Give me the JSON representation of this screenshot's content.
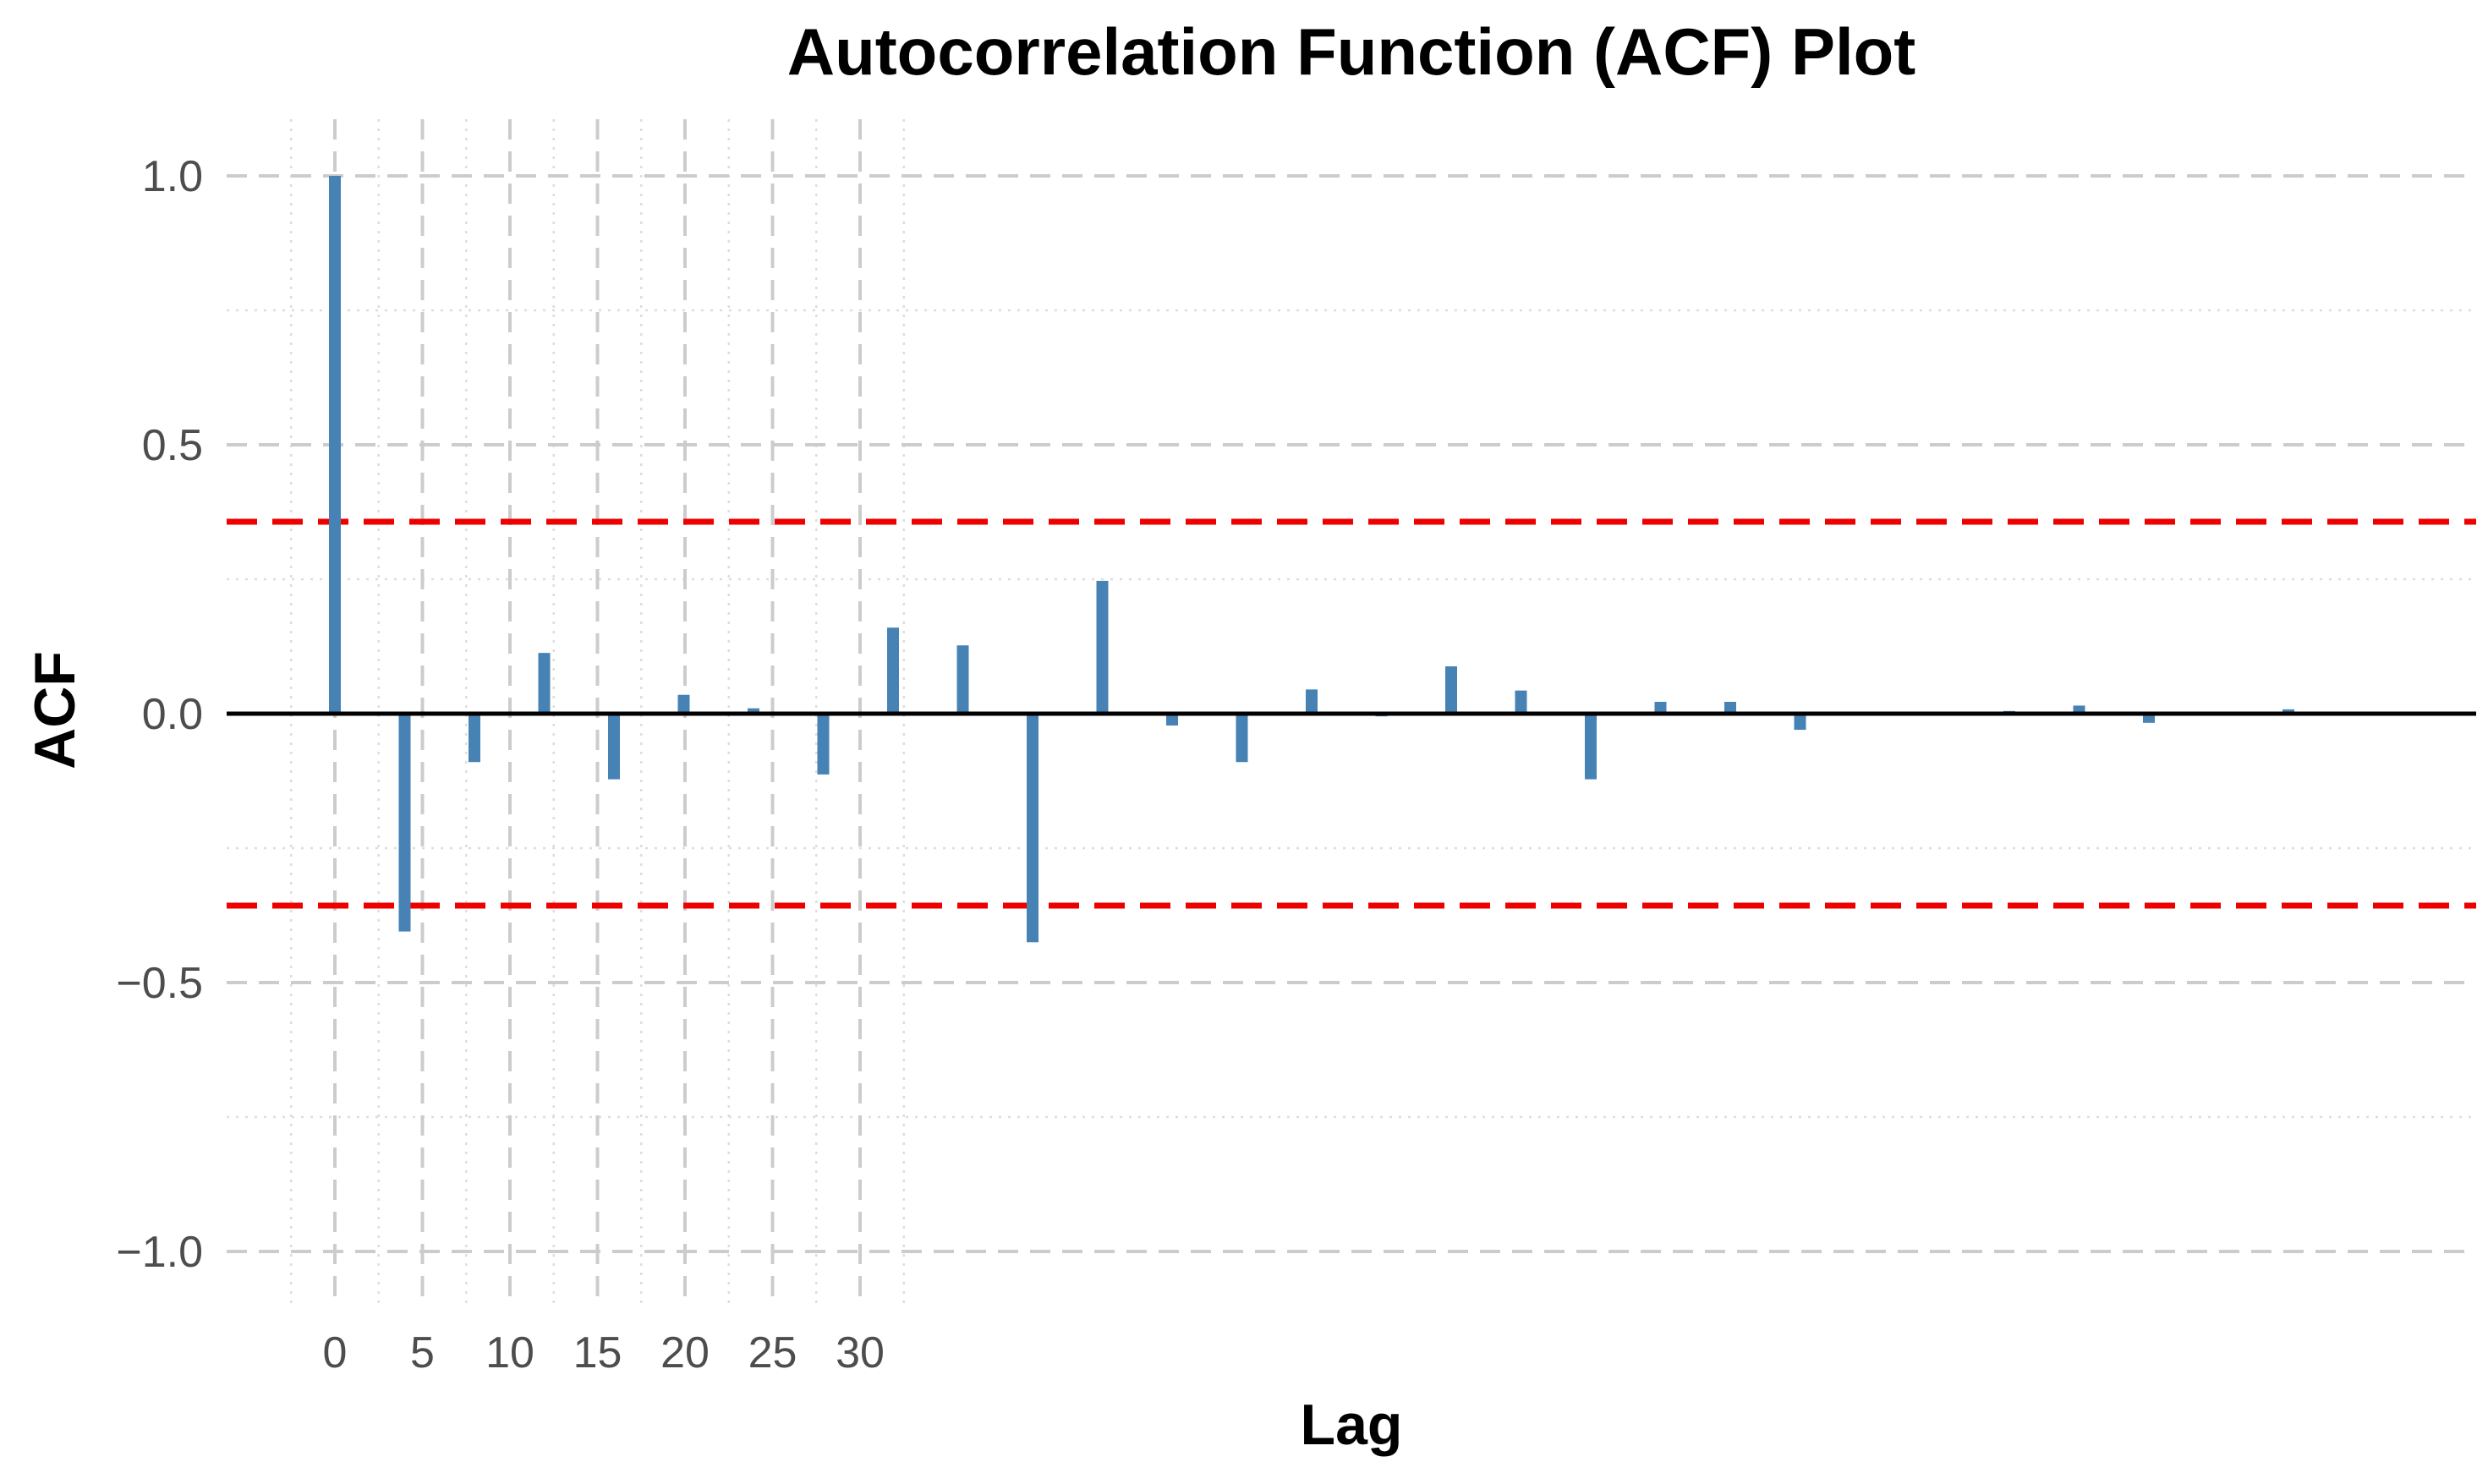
{
  "chart_data": {
    "type": "bar",
    "title": "Autocorrelation Function (ACF) Plot",
    "xlabel": "Lag",
    "ylabel": "ACF",
    "ylim": [
      -1.0,
      1.0
    ],
    "y_ticks": [
      {
        "value": 1.0,
        "label": "1.0"
      },
      {
        "value": 0.5,
        "label": "0.5"
      },
      {
        "value": 0.0,
        "label": "0.0"
      },
      {
        "value": -0.5,
        "label": "−0.5"
      },
      {
        "value": -1.0,
        "label": "−1.0"
      }
    ],
    "x_ticks": [
      {
        "value": 0,
        "label": "0"
      },
      {
        "value": 5,
        "label": "5"
      },
      {
        "value": 10,
        "label": "10"
      },
      {
        "value": 15,
        "label": "15"
      },
      {
        "value": 20,
        "label": "20"
      },
      {
        "value": 25,
        "label": "25"
      },
      {
        "value": 30,
        "label": "30"
      }
    ],
    "lags": [
      0,
      4,
      8,
      12,
      16,
      20,
      24,
      28,
      32,
      36,
      40,
      44,
      48,
      52,
      56,
      60,
      64,
      68,
      72,
      76,
      80,
      84,
      88,
      92,
      96,
      100,
      104,
      108,
      112
    ],
    "values": [
      1.0,
      -0.405,
      -0.09,
      0.113,
      -0.122,
      0.035,
      0.01,
      -0.113,
      0.16,
      0.127,
      -0.425,
      0.247,
      -0.022,
      -0.09,
      0.045,
      -0.005,
      0.088,
      0.043,
      -0.122,
      0.022,
      0.022,
      -0.03,
      0.0,
      0.0,
      0.005,
      0.015,
      -0.017,
      0.0,
      0.008
    ],
    "confidence_bound": 0.357,
    "grid": true,
    "colors": {
      "bar": "#4682b4",
      "confidence": "#ee0000",
      "zero_line": "#000000",
      "grid_major": "#cccccc",
      "grid_minor": "#dddddd"
    }
  }
}
